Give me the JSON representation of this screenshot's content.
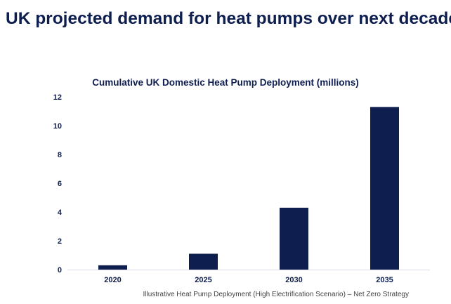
{
  "page_title": "UK projected demand for heat pumps over next decade",
  "source_note": "Illustrative Heat Pump Deployment (High Electrification Scenario) – Net Zero Strategy",
  "colors": {
    "bar": "#0e1e4f",
    "title": "#0e1e4f",
    "axis_line": "#d9d9e8",
    "tick_text": "#0e1e4f"
  },
  "chart_data": {
    "type": "bar",
    "title": "Cumulative UK Domestic Heat Pump Deployment (millions)",
    "categories": [
      "2020",
      "2025",
      "2030",
      "2035"
    ],
    "values": [
      0.3,
      1.1,
      4.3,
      11.3
    ],
    "ylim": [
      0,
      12
    ],
    "yticks": [
      "0",
      "2",
      "4",
      "6",
      "8",
      "10",
      "12"
    ],
    "xlabel": "",
    "ylabel": "",
    "grid": false,
    "legend": "none"
  }
}
